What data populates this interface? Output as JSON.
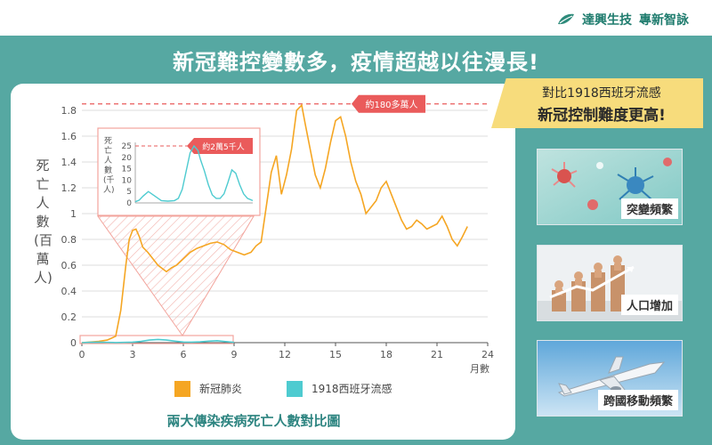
{
  "brand": {
    "name": "達興生技",
    "tagline": "專新智詠"
  },
  "headline": "新冠難控變數多，疫情超越以往漫長!",
  "callout": {
    "line1": "對比1918西班牙流感",
    "line2": "新冠控制難度更高!"
  },
  "cards": [
    {
      "label": "突變頻繁",
      "icon": "virus-illustration"
    },
    {
      "label": "人口增加",
      "icon": "population-figures-illustration"
    },
    {
      "label": "跨國移動頻繁",
      "icon": "airplane-illustration"
    }
  ],
  "colors": {
    "covid": "#f5a623",
    "flu": "#4ecbd0",
    "teal_bg": "#56a8a2",
    "callout": "#f7dc7c",
    "annotation": "#ea5b5b"
  },
  "chart_data": {
    "type": "line",
    "ylabel": "死亡人數(百萬人)",
    "xlabel": "月數",
    "caption": "兩大傳染疾病死亡人數對比圖",
    "xlim": [
      0,
      24
    ],
    "ylim": [
      0,
      1.8
    ],
    "xticks": [
      "0",
      "3",
      "6",
      "9",
      "12",
      "15",
      "18",
      "21",
      "24"
    ],
    "yticks": [
      "0",
      "0.2",
      "0.4",
      "0.6",
      "0.8",
      "1",
      "1.2",
      "1.4",
      "1.6",
      "1.8"
    ],
    "grid": true,
    "legend_position": "bottom",
    "annotation": {
      "text": "約180多萬人",
      "y": 1.85
    },
    "series": [
      {
        "name": "新冠肺炎",
        "x": [
          0,
          1,
          1.5,
          2,
          2.3,
          2.6,
          2.8,
          3.0,
          3.2,
          3.4,
          3.6,
          3.9,
          4.2,
          4.5,
          4.8,
          5.0,
          5.3,
          5.6,
          6.0,
          6.4,
          6.8,
          7.2,
          7.6,
          8.0,
          8.4,
          8.8,
          9.2,
          9.6,
          10.0,
          10.3,
          10.6,
          10.9,
          11.2,
          11.5,
          11.8,
          12.1,
          12.4,
          12.7,
          13.0,
          13.2,
          13.5,
          13.8,
          14.1,
          14.4,
          14.7,
          15.0,
          15.3,
          15.6,
          15.9,
          16.2,
          16.5,
          16.8,
          17.1,
          17.4,
          17.7,
          18.0,
          18.3,
          18.6,
          18.9,
          19.2,
          19.5,
          19.8,
          20.1,
          20.4,
          20.7,
          21.0,
          21.3,
          21.6,
          21.9,
          22.2,
          22.5,
          22.8
        ],
        "values": [
          0,
          0.01,
          0.02,
          0.05,
          0.25,
          0.6,
          0.8,
          0.87,
          0.88,
          0.82,
          0.74,
          0.7,
          0.65,
          0.6,
          0.57,
          0.55,
          0.58,
          0.6,
          0.65,
          0.7,
          0.73,
          0.75,
          0.77,
          0.78,
          0.76,
          0.72,
          0.7,
          0.68,
          0.7,
          0.75,
          0.78,
          1.05,
          1.32,
          1.45,
          1.15,
          1.3,
          1.5,
          1.8,
          1.84,
          1.7,
          1.5,
          1.3,
          1.2,
          1.35,
          1.55,
          1.72,
          1.75,
          1.6,
          1.4,
          1.25,
          1.15,
          1.0,
          1.05,
          1.1,
          1.2,
          1.25,
          1.15,
          1.05,
          0.95,
          0.88,
          0.9,
          0.95,
          0.92,
          0.88,
          0.9,
          0.92,
          0.98,
          0.9,
          0.8,
          0.75,
          0.82,
          0.9
        ]
      },
      {
        "name": "1918西班牙流感",
        "x": [
          0,
          0.5,
          1,
          1.5,
          2,
          2.5,
          3,
          3.5,
          4,
          4.5,
          5,
          5.5,
          6,
          6.5,
          7,
          7.5,
          8,
          8.5,
          9
        ],
        "values": [
          0,
          0.003,
          0.004,
          0.002,
          0.001,
          0.002,
          0.004,
          0.01,
          0.02,
          0.025,
          0.02,
          0.012,
          0.005,
          0.004,
          0.006,
          0.012,
          0.015,
          0.008,
          0.002
        ]
      }
    ],
    "inset": {
      "ylabel": "死亡人數(千人)",
      "yticks": [
        "0",
        "5",
        "10",
        "15",
        "20",
        "25"
      ],
      "ylim": [
        0,
        25
      ],
      "annotation": {
        "text": "約2萬5千人",
        "y": 25
      },
      "series": [
        {
          "name": "1918西班牙流感",
          "x": [
            0,
            0.3,
            0.6,
            1.0,
            1.5,
            2.0,
            2.5,
            3.0,
            3.3,
            3.6,
            3.9,
            4.2,
            4.5,
            4.8,
            5.0,
            5.3,
            5.6,
            5.9,
            6.2,
            6.5,
            6.8,
            7.1,
            7.4,
            7.7,
            8.0,
            8.3,
            8.6,
            9.0
          ],
          "values": [
            0.5,
            1.2,
            3.0,
            5.0,
            3.0,
            1.0,
            0.8,
            1.0,
            2.0,
            6.0,
            14.0,
            22.0,
            25.0,
            23.0,
            19.0,
            14.0,
            8.0,
            3.5,
            2.0,
            2.0,
            4.0,
            9.0,
            14.5,
            13.0,
            8.0,
            4.0,
            2.0,
            1.0
          ]
        }
      ]
    }
  }
}
